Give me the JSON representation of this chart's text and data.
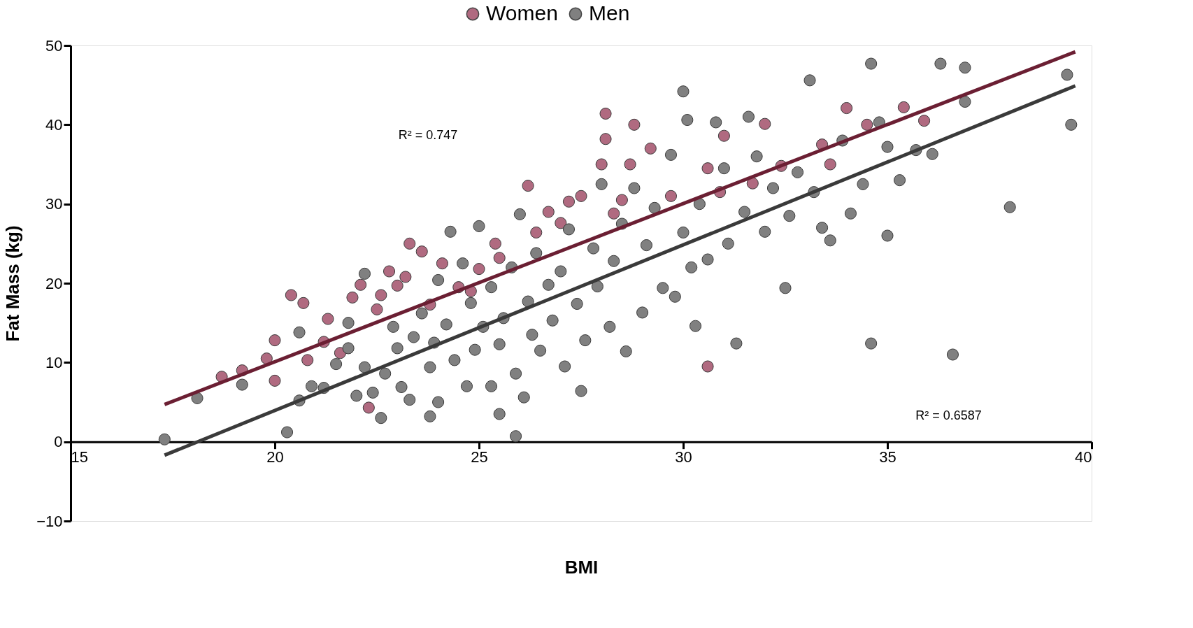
{
  "chart_data": {
    "type": "scatter",
    "xlabel": "BMI",
    "ylabel": "Fat Mass (kg)",
    "xlim": [
      15,
      40
    ],
    "xticks": [
      15,
      20,
      25,
      30,
      35,
      40
    ],
    "ylim": [
      -10,
      50
    ],
    "yticks": [
      -10,
      0,
      10,
      20,
      30,
      40,
      50
    ],
    "grid": false,
    "legend": "top",
    "marker": "circle",
    "annotations": [
      "R² = 0.747",
      "R² = 0.6587"
    ],
    "series": [
      {
        "name": "Women",
        "color": "#b06a80",
        "x": [
          18.7,
          19.2,
          19.8,
          20.0,
          20.0,
          20.4,
          20.7,
          20.8,
          21.2,
          21.3,
          21.6,
          21.9,
          22.1,
          22.3,
          22.5,
          22.6,
          22.8,
          23.0,
          23.2,
          23.3,
          23.6,
          23.8,
          24.1,
          24.5,
          24.8,
          25.0,
          25.4,
          25.5,
          26.2,
          26.4,
          26.7,
          27.0,
          27.2,
          27.5,
          28.1,
          28.1,
          28.0,
          28.3,
          28.5,
          28.7,
          28.8,
          29.2,
          29.7,
          30.6,
          30.6,
          30.9,
          31.0,
          31.7,
          32.0,
          32.4,
          33.4,
          33.6,
          34.0,
          34.5,
          35.4,
          35.9
        ],
        "values": [
          8.2,
          9,
          10.5,
          7.7,
          12.8,
          18.5,
          17.5,
          10.3,
          12.6,
          15.5,
          11.2,
          18.2,
          19.8,
          4.3,
          16.7,
          18.5,
          21.5,
          19.7,
          20.8,
          25,
          24.0,
          17.3,
          22.5,
          19.5,
          19.0,
          21.8,
          25,
          23.2,
          32.3,
          26.4,
          29,
          27.6,
          30.3,
          31,
          41.4,
          38.2,
          35,
          28.8,
          30.5,
          35,
          40,
          37,
          31,
          9.5,
          34.5,
          31.5,
          38.6,
          32.6,
          40.1,
          34.8,
          37.5,
          35,
          42.1,
          40,
          42.2,
          40.5
        ]
      },
      {
        "name": "Men",
        "color": "#808080",
        "x": [
          17.3,
          18.1,
          19.2,
          20.3,
          20.6,
          20.6,
          20.9,
          21.2,
          21.5,
          21.8,
          21.8,
          22.0,
          22.2,
          22.2,
          22.4,
          22.6,
          22.7,
          22.9,
          23.0,
          23.1,
          23.3,
          23.4,
          23.6,
          23.8,
          23.8,
          23.9,
          24.0,
          24.0,
          24.2,
          24.3,
          24.4,
          24.6,
          24.7,
          24.8,
          24.9,
          25.0,
          25.1,
          25.3,
          25.3,
          25.5,
          25.5,
          25.6,
          25.8,
          25.9,
          25.9,
          26.0,
          26.1,
          26.2,
          26.3,
          26.4,
          26.5,
          26.7,
          26.8,
          27.0,
          27.1,
          27.2,
          27.4,
          27.5,
          27.6,
          27.8,
          27.9,
          28.0,
          28.2,
          28.3,
          28.5,
          28.6,
          28.8,
          29.0,
          29.1,
          29.3,
          29.5,
          29.7,
          29.8,
          30.0,
          30.0,
          30.1,
          30.2,
          30.3,
          30.4,
          30.6,
          30.8,
          31.0,
          31.1,
          31.3,
          31.5,
          31.6,
          31.8,
          32.0,
          32.2,
          32.5,
          32.6,
          32.8,
          33.1,
          33.2,
          33.4,
          33.6,
          33.9,
          34.1,
          34.4,
          34.6,
          34.6,
          34.8,
          35.0,
          35.0,
          35.3,
          35.7,
          36.1,
          36.3,
          36.6,
          36.9,
          36.9,
          38.0,
          39.4,
          39.5
        ],
        "values": [
          0.3,
          5.5,
          7.2,
          1.2,
          5.2,
          13.8,
          7,
          6.8,
          9.8,
          15,
          11.8,
          5.8,
          9.4,
          21.2,
          6.2,
          3,
          8.6,
          14.5,
          11.8,
          6.9,
          5.3,
          13.2,
          16.2,
          3.2,
          9.4,
          12.5,
          5,
          20.4,
          14.8,
          26.5,
          10.3,
          22.5,
          7.0,
          17.5,
          11.6,
          27.2,
          14.5,
          7.0,
          19.5,
          3.5,
          12.3,
          15.6,
          22,
          0.7,
          8.6,
          28.7,
          5.6,
          17.7,
          13.5,
          23.8,
          11.5,
          19.8,
          15.3,
          21.5,
          9.5,
          26.8,
          17.4,
          6.4,
          12.8,
          24.4,
          19.6,
          32.5,
          14.5,
          22.8,
          27.5,
          11.4,
          32.0,
          16.3,
          24.8,
          29.5,
          19.4,
          36.2,
          18.3,
          44.2,
          26.4,
          40.6,
          22,
          14.6,
          30.0,
          23,
          40.3,
          34.5,
          25,
          12.4,
          29,
          41,
          36,
          26.5,
          32,
          19.4,
          28.5,
          34,
          45.6,
          31.5,
          27,
          25.4,
          38,
          28.8,
          32.5,
          12.4,
          47.7,
          40.3,
          26,
          37.2,
          33,
          36.8,
          36.3,
          47.7,
          11,
          42.9,
          47.2,
          29.6,
          46.3,
          40.0
        ]
      },
      {
        "type": "line",
        "marker": "none",
        "color": "#6b1f33",
        "x": [
          17.3,
          39.6
        ],
        "values": [
          4.7,
          49.2
        ]
      },
      {
        "type": "line",
        "marker": "none",
        "color": "#3a3a3a",
        "x": [
          17.3,
          39.6
        ],
        "values": [
          -1.7,
          44.9
        ]
      }
    ]
  }
}
